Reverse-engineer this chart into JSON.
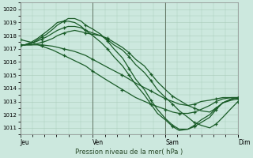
{
  "xlabel": "Pression niveau de la mer( hPa )",
  "ylim": [
    1010.5,
    1020.5
  ],
  "yticks": [
    1011,
    1012,
    1013,
    1014,
    1015,
    1016,
    1017,
    1018,
    1019,
    1020
  ],
  "xtick_labels": [
    "Jeu",
    "Ven",
    "Sam",
    "Dim"
  ],
  "xtick_positions": [
    0,
    0.333,
    0.667,
    1.0
  ],
  "xlim": [
    0,
    1.0
  ],
  "bg_color": "#cce8de",
  "grid_color": "#aaccbb",
  "line_color": "#1a5c28",
  "marker_color": "#1a5c28",
  "line_width": 0.9,
  "marker_size": 2.5,
  "series": [
    {
      "x": [
        0,
        0.02,
        0.05,
        0.08,
        0.12,
        0.15,
        0.17,
        0.2,
        0.22,
        0.25,
        0.28,
        0.3,
        0.333,
        0.37,
        0.4,
        0.43,
        0.47,
        0.5,
        0.53,
        0.57,
        0.6,
        0.63,
        0.667,
        0.7,
        0.73,
        0.77,
        0.8,
        0.83,
        0.87,
        0.9,
        0.93,
        0.97,
        1.0
      ],
      "y": [
        1017.3,
        1017.3,
        1017.3,
        1017.4,
        1017.6,
        1017.8,
        1018.0,
        1018.2,
        1018.3,
        1018.4,
        1018.3,
        1018.2,
        1018.1,
        1018.0,
        1017.8,
        1017.5,
        1017.1,
        1016.7,
        1016.2,
        1015.7,
        1015.1,
        1014.5,
        1013.9,
        1013.4,
        1013.1,
        1012.7,
        1012.5,
        1012.3,
        1012.2,
        1012.5,
        1012.9,
        1013.1,
        1013.2
      ],
      "markers_x": [
        0.0,
        0.1,
        0.2,
        0.3,
        0.4,
        0.5,
        0.6,
        0.7,
        0.8,
        0.9,
        1.0
      ],
      "markers_y": [
        1017.3,
        1017.5,
        1018.2,
        1018.2,
        1017.8,
        1016.7,
        1015.1,
        1013.4,
        1012.5,
        1012.5,
        1013.2
      ]
    },
    {
      "x": [
        0,
        0.02,
        0.05,
        0.08,
        0.12,
        0.15,
        0.17,
        0.2,
        0.22,
        0.25,
        0.28,
        0.3,
        0.333,
        0.37,
        0.4,
        0.43,
        0.47,
        0.5,
        0.53,
        0.57,
        0.6,
        0.63,
        0.667,
        0.7,
        0.73,
        0.77,
        0.8,
        0.83,
        0.87,
        0.9,
        0.93,
        0.97,
        1.0
      ],
      "y": [
        1017.3,
        1017.3,
        1017.4,
        1017.6,
        1017.9,
        1018.2,
        1018.4,
        1018.6,
        1018.7,
        1018.7,
        1018.6,
        1018.4,
        1018.2,
        1018.0,
        1017.7,
        1017.3,
        1016.9,
        1016.4,
        1015.8,
        1015.2,
        1014.6,
        1013.9,
        1013.3,
        1012.8,
        1012.3,
        1011.8,
        1011.4,
        1011.2,
        1011.0,
        1011.3,
        1011.8,
        1012.5,
        1013.0
      ],
      "markers_x": [
        0.0,
        0.1,
        0.2,
        0.3,
        0.4,
        0.5,
        0.6,
        0.7,
        0.8,
        0.9,
        1.0
      ],
      "markers_y": [
        1017.3,
        1017.7,
        1018.6,
        1018.4,
        1017.7,
        1016.4,
        1014.6,
        1012.8,
        1011.4,
        1011.3,
        1013.0
      ]
    },
    {
      "x": [
        0,
        0.02,
        0.05,
        0.08,
        0.12,
        0.15,
        0.17,
        0.2,
        0.22,
        0.25,
        0.28,
        0.3,
        0.333,
        0.37,
        0.4,
        0.43,
        0.47,
        0.5,
        0.53,
        0.57,
        0.6,
        0.63,
        0.667,
        0.7,
        0.73,
        0.77,
        0.8,
        0.83,
        0.87,
        0.9,
        0.93,
        0.97,
        1.0
      ],
      "y": [
        1017.3,
        1017.3,
        1017.4,
        1017.7,
        1018.1,
        1018.5,
        1018.8,
        1019.1,
        1019.3,
        1019.3,
        1019.1,
        1018.8,
        1018.5,
        1018.1,
        1017.6,
        1017.0,
        1016.3,
        1015.5,
        1014.7,
        1013.9,
        1013.1,
        1012.4,
        1011.7,
        1011.2,
        1010.9,
        1010.9,
        1011.1,
        1011.4,
        1011.8,
        1012.4,
        1012.9,
        1013.2,
        1013.3
      ],
      "markers_x": [
        0.0,
        0.1,
        0.2,
        0.3,
        0.4,
        0.5,
        0.6,
        0.7,
        0.8,
        0.9,
        1.0
      ],
      "markers_y": [
        1017.3,
        1017.9,
        1019.1,
        1018.8,
        1017.6,
        1015.5,
        1013.1,
        1011.2,
        1011.1,
        1012.4,
        1013.3
      ]
    },
    {
      "x": [
        0,
        0.02,
        0.05,
        0.08,
        0.12,
        0.15,
        0.17,
        0.2,
        0.22,
        0.25,
        0.28,
        0.3,
        0.333,
        0.37,
        0.4,
        0.43,
        0.47,
        0.5,
        0.53,
        0.57,
        0.6,
        0.63,
        0.667,
        0.7,
        0.73,
        0.77,
        0.8,
        0.83,
        0.87,
        0.9,
        0.93,
        0.97,
        1.0
      ],
      "y": [
        1017.3,
        1017.3,
        1017.5,
        1017.8,
        1018.3,
        1018.7,
        1019.0,
        1019.1,
        1019.1,
        1019.0,
        1018.7,
        1018.4,
        1018.0,
        1017.5,
        1017.0,
        1016.4,
        1015.7,
        1015.0,
        1014.3,
        1013.5,
        1012.8,
        1012.1,
        1011.6,
        1011.1,
        1010.8,
        1010.9,
        1011.2,
        1011.6,
        1012.0,
        1012.5,
        1012.9,
        1013.2,
        1013.3
      ],
      "markers_x": [
        0.0,
        0.1,
        0.2,
        0.3,
        0.4,
        0.5,
        0.6,
        0.7,
        0.8,
        0.9,
        1.0
      ],
      "markers_y": [
        1017.3,
        1018.0,
        1019.1,
        1018.4,
        1017.0,
        1015.0,
        1012.8,
        1011.1,
        1011.2,
        1012.5,
        1013.3
      ]
    },
    {
      "x": [
        0,
        0.05,
        0.1,
        0.15,
        0.2,
        0.25,
        0.3,
        0.333,
        0.4,
        0.47,
        0.53,
        0.6,
        0.667,
        0.7,
        0.73,
        0.77,
        0.8,
        0.83,
        0.87,
        0.9,
        0.93,
        0.97,
        1.0
      ],
      "y": [
        1017.3,
        1017.3,
        1017.3,
        1017.2,
        1017.0,
        1016.8,
        1016.5,
        1016.2,
        1015.6,
        1015.0,
        1014.4,
        1013.8,
        1013.2,
        1013.0,
        1012.8,
        1012.7,
        1012.8,
        1013.0,
        1013.1,
        1013.2,
        1013.3,
        1013.3,
        1013.3
      ],
      "markers_x": [
        0.0,
        0.1,
        0.2,
        0.333,
        0.467,
        0.6,
        0.667,
        0.8,
        0.9,
        1.0
      ],
      "markers_y": [
        1017.3,
        1017.3,
        1017.0,
        1016.2,
        1015.0,
        1013.8,
        1013.2,
        1012.8,
        1013.2,
        1013.3
      ]
    },
    {
      "x": [
        0,
        0.05,
        0.1,
        0.15,
        0.2,
        0.25,
        0.3,
        0.333,
        0.4,
        0.47,
        0.53,
        0.6,
        0.667,
        0.7,
        0.73,
        0.77,
        0.8,
        0.83,
        0.87,
        0.9,
        0.93,
        0.97,
        1.0
      ],
      "y": [
        1017.7,
        1017.5,
        1017.2,
        1016.9,
        1016.5,
        1016.1,
        1015.7,
        1015.3,
        1014.6,
        1013.9,
        1013.3,
        1012.8,
        1012.4,
        1012.2,
        1012.1,
        1012.1,
        1012.2,
        1012.4,
        1012.7,
        1013.0,
        1013.2,
        1013.3,
        1013.3
      ],
      "markers_x": [
        0.0,
        0.1,
        0.2,
        0.333,
        0.467,
        0.6,
        0.667,
        0.73,
        0.8,
        0.9,
        1.0
      ],
      "markers_y": [
        1017.7,
        1017.2,
        1016.5,
        1015.3,
        1013.9,
        1012.8,
        1012.4,
        1012.1,
        1012.2,
        1013.0,
        1013.3
      ]
    }
  ]
}
